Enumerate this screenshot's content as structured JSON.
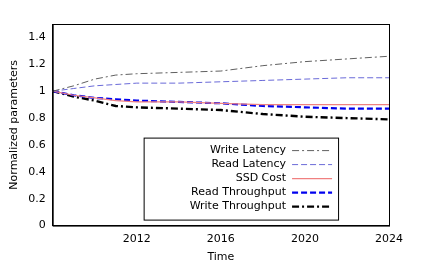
{
  "chart_data": {
    "type": "line",
    "x_label": "Time",
    "y_label": "Normalized parameters",
    "x": [
      2008,
      2009,
      2010,
      2011,
      2012,
      2014,
      2016,
      2018,
      2020,
      2022,
      2024
    ],
    "series": [
      {
        "name": "Write Latency",
        "color": "#606060",
        "line_style": "dashdot",
        "values": [
          1.0,
          1.04,
          1.09,
          1.12,
          1.13,
          1.14,
          1.15,
          1.19,
          1.22,
          1.24,
          1.26
        ]
      },
      {
        "name": "Read Latency",
        "color": "#6a6ad8",
        "line_style": "dashed",
        "values": [
          1.0,
          1.02,
          1.04,
          1.05,
          1.06,
          1.06,
          1.07,
          1.08,
          1.09,
          1.1,
          1.1
        ]
      },
      {
        "name": "SSD Cost",
        "color": "#f08080",
        "line_style": "solid",
        "values": [
          1.0,
          0.97,
          0.95,
          0.93,
          0.92,
          0.92,
          0.91,
          0.9,
          0.9,
          0.9,
          0.9
        ]
      },
      {
        "name": "Read Throughput",
        "color": "#0000ee",
        "line_style": "dashed",
        "values": [
          1.0,
          0.97,
          0.95,
          0.94,
          0.93,
          0.92,
          0.91,
          0.89,
          0.88,
          0.87,
          0.87
        ]
      },
      {
        "name": "Write Throughput",
        "color": "#000000",
        "line_style": "dashdot",
        "values": [
          1.0,
          0.96,
          0.93,
          0.89,
          0.88,
          0.87,
          0.86,
          0.83,
          0.81,
          0.8,
          0.79
        ]
      }
    ],
    "xlim": [
      2008,
      2024
    ],
    "xticks": [
      2012,
      2016,
      2020,
      2024
    ],
    "ylim": [
      0,
      1.5
    ],
    "yticks": [
      0,
      0.2,
      0.4,
      0.6,
      0.8,
      1,
      1.2,
      1.4
    ],
    "grid": false,
    "legend": "bottom"
  }
}
